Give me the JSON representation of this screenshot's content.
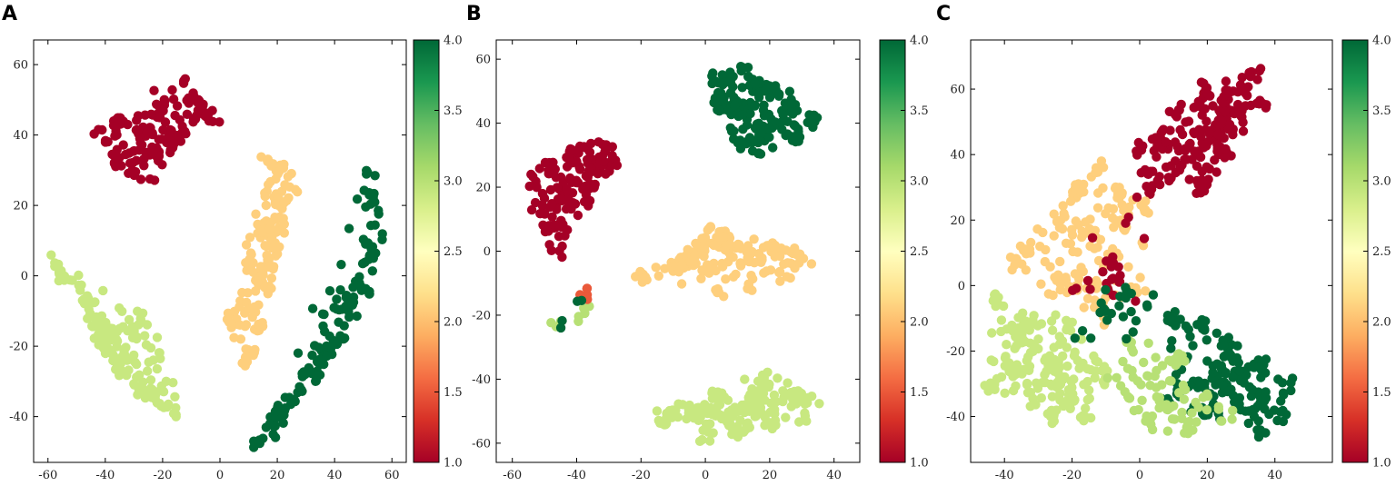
{
  "chart_data": [
    {
      "panel_label": "A",
      "type": "scatter",
      "xlim": [
        -65,
        65
      ],
      "ylim": [
        -53,
        67
      ],
      "xticks": [
        -60,
        -40,
        -20,
        0,
        20,
        40,
        60
      ],
      "yticks": [
        -40,
        -20,
        0,
        20,
        40,
        60
      ],
      "colorbar": {
        "range": [
          1.0,
          4.0
        ],
        "ticks": [
          "1.0",
          "1.5",
          "2.0",
          "2.5",
          "3.0",
          "3.5",
          "4.0"
        ],
        "colormap": "RdYlGn"
      },
      "clusters": [
        {
          "value": 1.0,
          "n": 150,
          "points": [
            [
              -42,
              40
            ],
            [
              -36,
              44
            ],
            [
              -32,
              36
            ],
            [
              -26,
              41
            ],
            [
              -22,
              34
            ],
            [
              -18,
              38
            ],
            [
              -20,
              48
            ],
            [
              -14,
              54
            ],
            [
              -10,
              50
            ],
            [
              -6,
              47
            ],
            [
              -2,
              45
            ],
            [
              -38,
              33
            ],
            [
              -30,
              30
            ],
            [
              -24,
              28
            ]
          ]
        },
        {
          "value": 2.1,
          "n": 160,
          "points": [
            [
              16,
              34
            ],
            [
              22,
              30
            ],
            [
              26,
              24
            ],
            [
              18,
              22
            ],
            [
              14,
              14
            ],
            [
              20,
              10
            ],
            [
              12,
              4
            ],
            [
              16,
              -2
            ],
            [
              10,
              -8
            ],
            [
              14,
              -14
            ],
            [
              6,
              -16
            ],
            [
              10,
              -22
            ],
            [
              8,
              -24
            ],
            [
              20,
              18
            ],
            [
              24,
              28
            ],
            [
              4,
              -12
            ]
          ]
        },
        {
          "value": 4.0,
          "n": 150,
          "points": [
            [
              52,
              30
            ],
            [
              54,
              22
            ],
            [
              56,
              12
            ],
            [
              52,
              4
            ],
            [
              50,
              -4
            ],
            [
              46,
              -10
            ],
            [
              42,
              -16
            ],
            [
              36,
              -22
            ],
            [
              32,
              -28
            ],
            [
              26,
              -34
            ],
            [
              22,
              -38
            ],
            [
              18,
              -44
            ],
            [
              14,
              -47
            ],
            [
              48,
              0
            ],
            [
              40,
              -20
            ]
          ]
        },
        {
          "value": 2.9,
          "n": 160,
          "points": [
            [
              -58,
              4
            ],
            [
              -54,
              0
            ],
            [
              -50,
              -4
            ],
            [
              -46,
              -8
            ],
            [
              -44,
              -14
            ],
            [
              -36,
              -16
            ],
            [
              -30,
              -14
            ],
            [
              -32,
              -22
            ],
            [
              -34,
              -28
            ],
            [
              -28,
              -32
            ],
            [
              -24,
              -34
            ],
            [
              -18,
              -32
            ],
            [
              -20,
              -38
            ],
            [
              -16,
              -40
            ],
            [
              -40,
              -20
            ],
            [
              -26,
              -12
            ]
          ]
        }
      ]
    },
    {
      "panel_label": "B",
      "type": "scatter",
      "xlim": [
        -65,
        48
      ],
      "ylim": [
        -66,
        66
      ],
      "xticks": [
        -60,
        -40,
        -20,
        0,
        20,
        40
      ],
      "yticks": [
        -60,
        -40,
        -20,
        0,
        20,
        40,
        60
      ],
      "colorbar": {
        "range": [
          1.0,
          4.0
        ],
        "ticks": [
          "1.0",
          "1.5",
          "2.0",
          "2.5",
          "3.0",
          "3.5",
          "4.0"
        ],
        "colormap": "RdYlGn"
      },
      "clusters": [
        {
          "value": 4.0,
          "n": 180,
          "points": [
            [
              4,
              54
            ],
            [
              12,
              56
            ],
            [
              20,
              52
            ],
            [
              26,
              46
            ],
            [
              34,
              42
            ],
            [
              28,
              36
            ],
            [
              18,
              38
            ],
            [
              10,
              44
            ],
            [
              4,
              46
            ],
            [
              8,
              36
            ],
            [
              16,
              32
            ]
          ]
        },
        {
          "value": 1.0,
          "n": 150,
          "points": [
            [
              -54,
              22
            ],
            [
              -48,
              26
            ],
            [
              -42,
              30
            ],
            [
              -36,
              34
            ],
            [
              -30,
              32
            ],
            [
              -28,
              26
            ],
            [
              -36,
              22
            ],
            [
              -44,
              18
            ],
            [
              -52,
              14
            ],
            [
              -48,
              6
            ],
            [
              -46,
              0
            ],
            [
              -40,
              10
            ],
            [
              -34,
              28
            ]
          ]
        },
        {
          "value": 2.1,
          "n": 170,
          "points": [
            [
              -20,
              -8
            ],
            [
              -10,
              -6
            ],
            [
              -2,
              2
            ],
            [
              6,
              4
            ],
            [
              12,
              -2
            ],
            [
              20,
              2
            ],
            [
              28,
              0
            ],
            [
              32,
              -4
            ],
            [
              24,
              -8
            ],
            [
              14,
              -10
            ],
            [
              4,
              -12
            ],
            [
              -6,
              -4
            ],
            [
              0,
              6
            ]
          ]
        },
        {
          "value": 2.9,
          "n": 190,
          "points": [
            [
              -14,
              -52
            ],
            [
              -4,
              -50
            ],
            [
              6,
              -52
            ],
            [
              14,
              -46
            ],
            [
              20,
              -40
            ],
            [
              28,
              -44
            ],
            [
              34,
              -46
            ],
            [
              30,
              -52
            ],
            [
              20,
              -54
            ],
            [
              10,
              -56
            ],
            [
              0,
              -58
            ],
            [
              -10,
              -50
            ],
            [
              4,
              -44
            ]
          ]
        },
        {
          "value": 3.0,
          "n": 8,
          "points": [
            [
              -46,
              -24
            ],
            [
              -38,
              -20
            ],
            [
              -36,
              -18
            ]
          ]
        },
        {
          "value": 1.5,
          "n": 5,
          "points": [
            [
              -38,
              -13
            ],
            [
              -36,
              -14
            ]
          ]
        },
        {
          "value": 4.0,
          "n": 4,
          "points": [
            [
              -44,
              -23
            ],
            [
              -40,
              -17
            ]
          ]
        }
      ]
    },
    {
      "panel_label": "C",
      "type": "scatter",
      "xlim": [
        -50,
        57
      ],
      "ylim": [
        -54,
        75
      ],
      "xticks": [
        -40,
        -20,
        0,
        20,
        40
      ],
      "yticks": [
        -40,
        -20,
        0,
        20,
        40,
        60
      ],
      "colorbar": {
        "range": [
          1.0,
          4.0
        ],
        "ticks": [
          "1.0",
          "1.5",
          "2.0",
          "2.5",
          "3.0",
          "3.5",
          "4.0"
        ],
        "colormap": "RdYlGn"
      },
      "clusters": [
        {
          "value": 1.0,
          "n": 200,
          "points": [
            [
              34,
              64
            ],
            [
              30,
              58
            ],
            [
              26,
              52
            ],
            [
              22,
              46
            ],
            [
              16,
              40
            ],
            [
              10,
              34
            ],
            [
              4,
              30
            ],
            [
              0,
              42
            ],
            [
              6,
              46
            ],
            [
              12,
              54
            ],
            [
              20,
              60
            ],
            [
              28,
              48
            ],
            [
              18,
              30
            ],
            [
              36,
              56
            ],
            [
              24,
              40
            ]
          ]
        },
        {
          "value": 2.1,
          "n": 170,
          "points": [
            [
              -12,
              36
            ],
            [
              -18,
              30
            ],
            [
              -24,
              20
            ],
            [
              -30,
              14
            ],
            [
              -36,
              10
            ],
            [
              -40,
              4
            ],
            [
              -28,
              4
            ],
            [
              -20,
              0
            ],
            [
              -14,
              -6
            ],
            [
              -8,
              10
            ],
            [
              -4,
              20
            ],
            [
              -6,
              28
            ],
            [
              2,
              24
            ],
            [
              -10,
              -12
            ],
            [
              0,
              -2
            ]
          ]
        },
        {
          "value": 2.9,
          "n": 200,
          "points": [
            [
              -42,
              -4
            ],
            [
              -36,
              -14
            ],
            [
              -38,
              -24
            ],
            [
              -32,
              -34
            ],
            [
              -26,
              -40
            ],
            [
              -20,
              -34
            ],
            [
              -14,
              -24
            ],
            [
              -26,
              -24
            ],
            [
              -32,
              -10
            ],
            [
              -16,
              -40
            ],
            [
              -10,
              -28
            ],
            [
              -44,
              -30
            ],
            [
              -20,
              -12
            ]
          ]
        },
        {
          "value": 4.0,
          "n": 180,
          "points": [
            [
              10,
              -10
            ],
            [
              18,
              -12
            ],
            [
              26,
              -18
            ],
            [
              30,
              -28
            ],
            [
              36,
              -36
            ],
            [
              42,
              -40
            ],
            [
              44,
              -30
            ],
            [
              36,
              -24
            ],
            [
              24,
              -28
            ],
            [
              16,
              -30
            ],
            [
              8,
              -34
            ],
            [
              20,
              -40
            ],
            [
              34,
              -44
            ]
          ]
        },
        {
          "value": 3.0,
          "n": 90,
          "points": [
            [
              -2,
              -18
            ],
            [
              4,
              -26
            ],
            [
              8,
              -38
            ],
            [
              14,
              -44
            ],
            [
              2,
              -42
            ],
            [
              -8,
              -30
            ],
            [
              12,
              -22
            ],
            [
              20,
              -36
            ],
            [
              -4,
              -36
            ],
            [
              26,
              -40
            ]
          ]
        },
        {
          "value": 1.0,
          "n": 30,
          "points": [
            [
              -14,
              16
            ],
            [
              -8,
              6
            ],
            [
              -6,
              2
            ],
            [
              2,
              36
            ],
            [
              -10,
              0
            ],
            [
              -2,
              -4
            ],
            [
              -18,
              -2
            ]
          ]
        },
        {
          "value": 4.0,
          "n": 25,
          "points": [
            [
              -12,
              -6
            ],
            [
              -6,
              -2
            ],
            [
              -2,
              -8
            ],
            [
              4,
              -4
            ],
            [
              0,
              -14
            ],
            [
              -18,
              -14
            ]
          ]
        }
      ]
    }
  ]
}
